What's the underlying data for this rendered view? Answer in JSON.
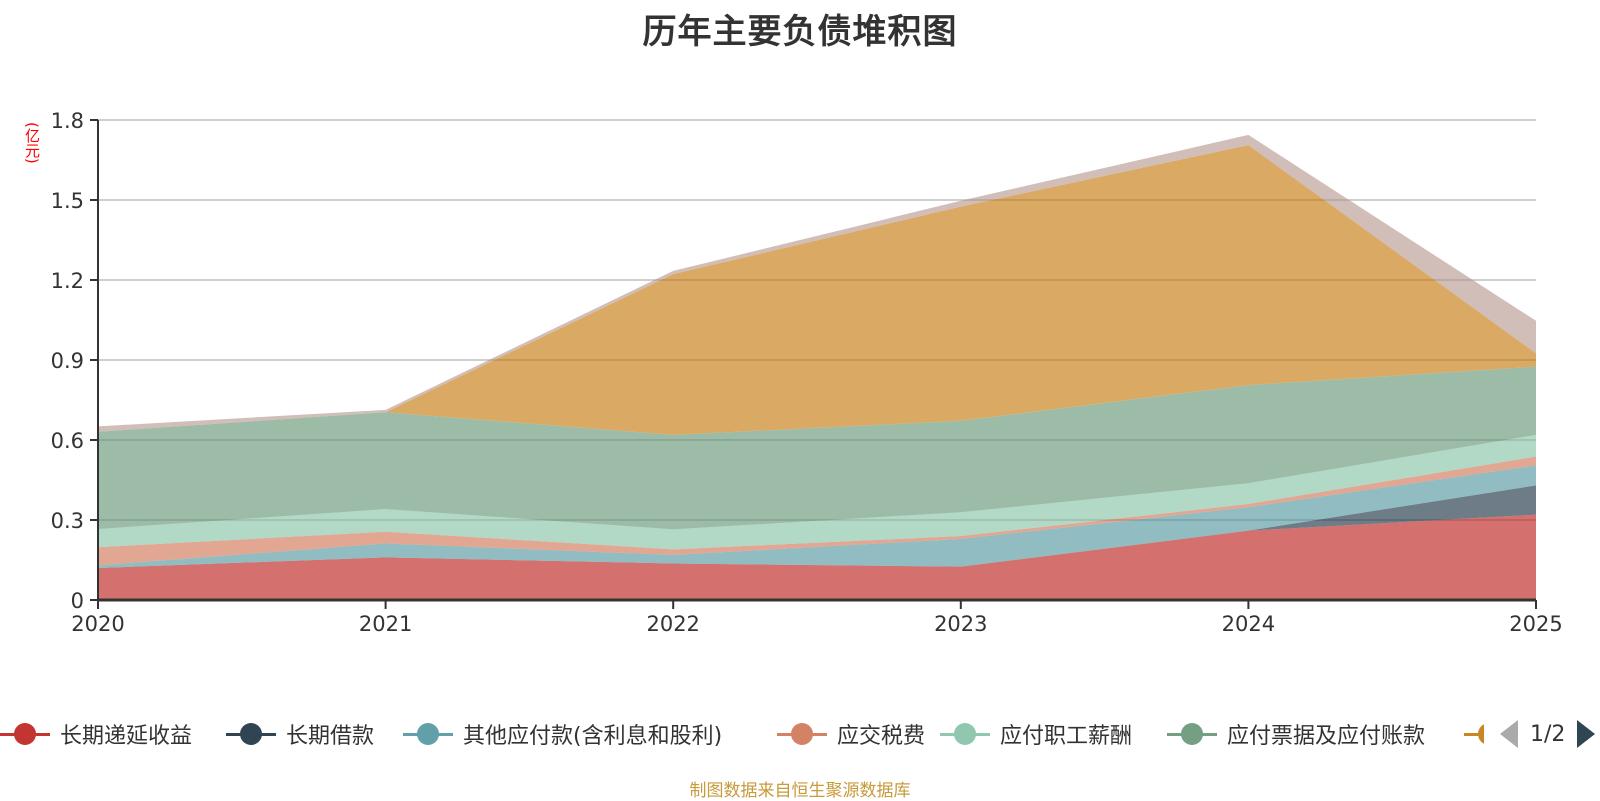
{
  "chart_data": {
    "type": "area",
    "stacked": true,
    "title": "历年主要负债堆积图",
    "ylabel": "(亿元)",
    "xlabel": "",
    "categories": [
      "2020",
      "2021",
      "2022",
      "2023",
      "2024",
      "2025"
    ],
    "ylim": [
      0,
      1.8
    ],
    "yticks": [
      "0",
      "0.3",
      "0.6",
      "0.9",
      "1.2",
      "1.5",
      "1.8"
    ],
    "ytick_values": [
      0,
      0.3,
      0.6,
      0.9,
      1.2,
      1.5,
      1.8
    ],
    "grid": true,
    "legend_position": "bottom",
    "series": [
      {
        "name": "长期递延收益",
        "color": "#c23531",
        "values": [
          0.12,
          0.16,
          0.137,
          0.125,
          0.26,
          0.32
        ]
      },
      {
        "name": "长期借款",
        "color": "#2f4554",
        "values": [
          0,
          0,
          0,
          0,
          0,
          0.11
        ]
      },
      {
        "name": "其他应付款(含利息和股利)",
        "color": "#61a0a8",
        "values": [
          0.01,
          0.052,
          0.032,
          0.104,
          0.088,
          0.075
        ]
      },
      {
        "name": "应交税费",
        "color": "#d48265",
        "values": [
          0.068,
          0.044,
          0.021,
          0.011,
          0.012,
          0.033
        ]
      },
      {
        "name": "应付职工薪酬",
        "color": "#91c7ae",
        "values": [
          0.068,
          0.085,
          0.075,
          0.089,
          0.078,
          0.081
        ]
      },
      {
        "name": "应付票据及应付账款",
        "color": "#749f83",
        "values": [
          0.365,
          0.363,
          0.354,
          0.343,
          0.368,
          0.256
        ]
      },
      {
        "name": "",
        "color": "#ca8622",
        "values": [
          0,
          0,
          0.603,
          0.803,
          0.9,
          0.05
        ]
      },
      {
        "name": "",
        "color": "#bda29a",
        "values": [
          0.02,
          0.009,
          0.012,
          0.022,
          0.038,
          0.122
        ]
      }
    ]
  },
  "legend": {
    "visible_items": [
      {
        "label": "长期递延收益",
        "color": "#c23531"
      },
      {
        "label": "长期借款",
        "color": "#2f4554"
      },
      {
        "label": "其他应付款(含利息和股利)",
        "color": "#61a0a8"
      },
      {
        "label": "应交税费",
        "color": "#d48265"
      },
      {
        "label": "应付职工薪酬",
        "color": "#91c7ae"
      },
      {
        "label": "应付票据及应付账款",
        "color": "#749f83"
      }
    ],
    "partial_item_color": "#ca8622",
    "page_indicator": "1/2"
  },
  "footer": {
    "note": "制图数据来自恒生聚源数据库"
  }
}
